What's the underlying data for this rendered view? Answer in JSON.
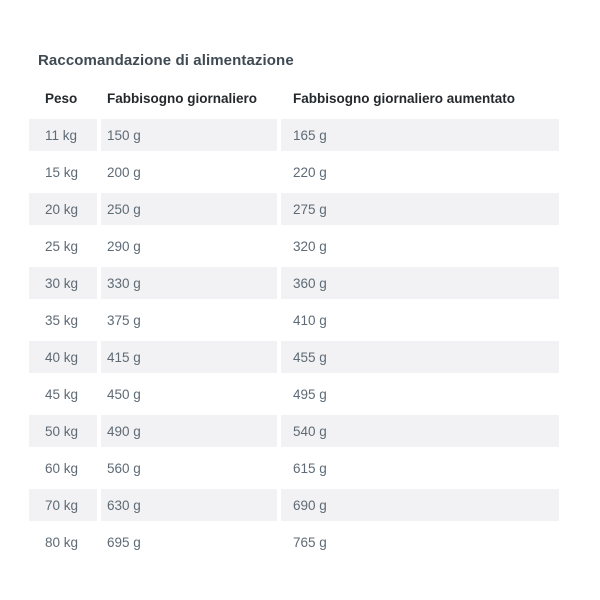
{
  "table": {
    "title": "Raccomandazione di alimentazione",
    "columns": [
      "Peso",
      "Fabbisogno giornaliero",
      "Fabbisogno giornaliero aumentato"
    ],
    "rows": [
      [
        "11 kg",
        "150 g",
        "165 g"
      ],
      [
        "15 kg",
        "200 g",
        "220 g"
      ],
      [
        "20 kg",
        "250 g",
        "275 g"
      ],
      [
        "25 kg",
        "290 g",
        "320 g"
      ],
      [
        "30 kg",
        "330 g",
        "360 g"
      ],
      [
        "35 kg",
        "375 g",
        "410 g"
      ],
      [
        "40 kg",
        "415 g",
        "455 g"
      ],
      [
        "45 kg",
        "450 g",
        "495 g"
      ],
      [
        "50 kg",
        "490 g",
        "540 g"
      ],
      [
        "60 kg",
        "560 g",
        "615 g"
      ],
      [
        "70 kg",
        "630 g",
        "690 g"
      ],
      [
        "80 kg",
        "695 g",
        "765 g"
      ]
    ],
    "colors": {
      "stripe": "#f2f2f4",
      "cell_text": "#5e6a75",
      "header_text": "#24292e",
      "title_text": "#3f4a53",
      "page_bg": "#ffffff"
    }
  }
}
